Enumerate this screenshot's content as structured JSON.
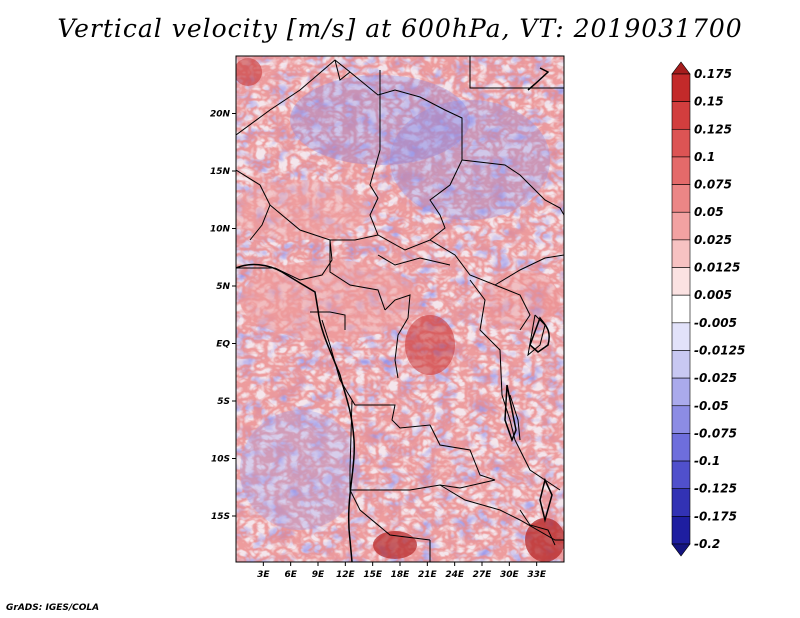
{
  "title": "Vertical velocity [m/s] at 600hPa, VT: 2019031700",
  "credit": "GrADS: IGES/COLA",
  "map": {
    "lon_range": [
      0,
      36
    ],
    "lat_range": [
      -19,
      25
    ],
    "lat_ticks": [
      {
        "value": 20,
        "label": "20N"
      },
      {
        "value": 15,
        "label": "15N"
      },
      {
        "value": 10,
        "label": "10N"
      },
      {
        "value": 5,
        "label": "5N"
      },
      {
        "value": 0,
        "label": "EQ"
      },
      {
        "value": -5,
        "label": "5S"
      },
      {
        "value": -10,
        "label": "10S"
      },
      {
        "value": -15,
        "label": "15S"
      }
    ],
    "lon_ticks": [
      {
        "value": 3,
        "label": "3E"
      },
      {
        "value": 6,
        "label": "6E"
      },
      {
        "value": 9,
        "label": "9E"
      },
      {
        "value": 12,
        "label": "12E"
      },
      {
        "value": 15,
        "label": "15E"
      },
      {
        "value": 18,
        "label": "18E"
      },
      {
        "value": 21,
        "label": "21E"
      },
      {
        "value": 24,
        "label": "24E"
      },
      {
        "value": 27,
        "label": "27E"
      },
      {
        "value": 30,
        "label": "30E"
      },
      {
        "value": 33,
        "label": "33E"
      }
    ]
  },
  "colorbar": {
    "labels": [
      "0.175",
      "0.15",
      "0.125",
      "0.1",
      "0.075",
      "0.05",
      "0.025",
      "0.0125",
      "0.005",
      "-0.005",
      "-0.0125",
      "-0.025",
      "-0.05",
      "-0.075",
      "-0.1",
      "-0.125",
      "-0.175",
      "-0.2"
    ],
    "colors": [
      "#a51d1d",
      "#c32a2a",
      "#d23e3e",
      "#dc5454",
      "#e46a6a",
      "#ec8686",
      "#f2a2a2",
      "#f7c2c2",
      "#fbe2e2",
      "#ffffff",
      "#e2e2fa",
      "#c8c8f2",
      "#aaaaec",
      "#8c8ce4",
      "#6e6edc",
      "#5050cc",
      "#3232b4",
      "#1e1ea0",
      "#141480"
    ]
  }
}
